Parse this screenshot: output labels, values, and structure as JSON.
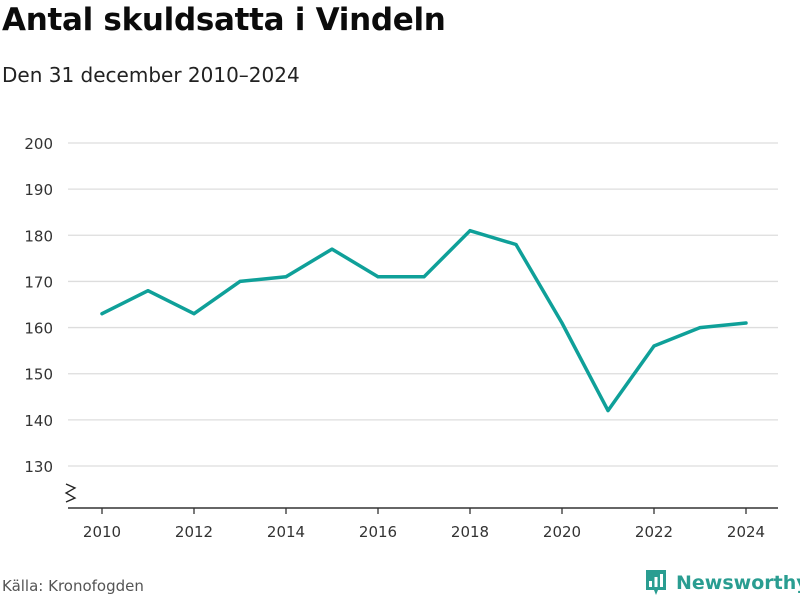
{
  "title": "Antal skuldsatta i Vindeln",
  "subtitle": "Den 31 december 2010–2024",
  "source": "Källa: Kronofogden",
  "brand": "Newsworthy",
  "colors": {
    "line": "#0fa099",
    "grid": "#dddddd",
    "axis": "#333333",
    "brand": "#2a9d91"
  },
  "chart_data": {
    "type": "line",
    "x": [
      2010,
      2011,
      2012,
      2013,
      2014,
      2015,
      2016,
      2017,
      2018,
      2019,
      2020,
      2021,
      2022,
      2023,
      2024
    ],
    "series": [
      {
        "values": [
          163,
          168,
          163,
          170,
          171,
          177,
          171,
          171,
          181,
          178,
          161,
          142,
          156,
          160,
          161
        ]
      }
    ],
    "xticks": [
      "2010",
      "2012",
      "2014",
      "2016",
      "2018",
      "2020",
      "2022",
      "2024"
    ],
    "yticks": [
      "130",
      "140",
      "150",
      "160",
      "170",
      "180",
      "190",
      "200"
    ],
    "ylim": [
      130,
      200
    ],
    "axis_break": true,
    "grid": true,
    "xlabel": "",
    "ylabel": ""
  }
}
